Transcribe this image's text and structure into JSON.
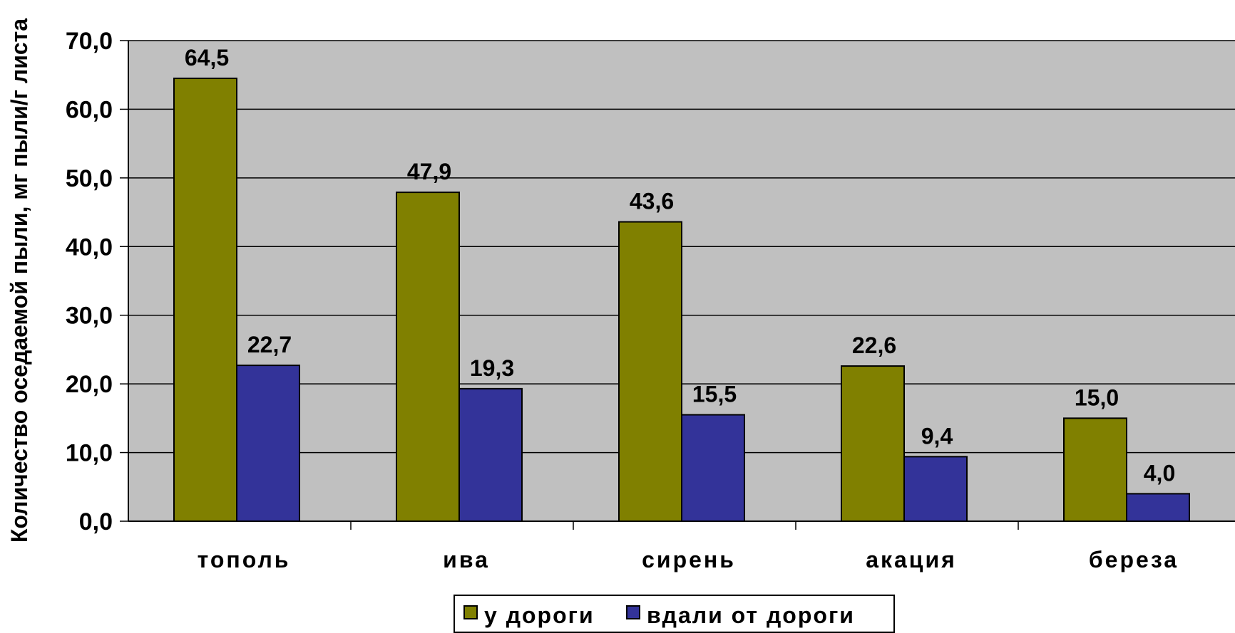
{
  "chart_data": {
    "type": "bar",
    "title": "",
    "xlabel": "",
    "ylabel": "Количество оседаемой пыли, мг пыли/г листа",
    "categories": [
      "тополь",
      "ива",
      "сирень",
      "акация",
      "береза"
    ],
    "series": [
      {
        "name": "у дороги",
        "color": "#808000",
        "values": [
          64.5,
          47.9,
          43.6,
          22.6,
          15.0
        ],
        "labels": [
          "64,5",
          "47,9",
          "43,6",
          "22,6",
          "15,0"
        ]
      },
      {
        "name": "вдали от дороги",
        "color": "#333399",
        "values": [
          22.7,
          19.3,
          15.5,
          9.4,
          4.0
        ],
        "labels": [
          "22,7",
          "19,3",
          "15,5",
          "9,4",
          "4,0"
        ]
      }
    ],
    "ylim": [
      0,
      70
    ],
    "yticks": [
      0,
      10,
      20,
      30,
      40,
      50,
      60,
      70
    ],
    "ytick_labels": [
      "0,0",
      "10,0",
      "20,0",
      "30,0",
      "40,0",
      "50,0",
      "60,0",
      "70,0"
    ],
    "grid": true,
    "legend_position": "bottom-center",
    "plot_background": "#c0c0c0"
  }
}
